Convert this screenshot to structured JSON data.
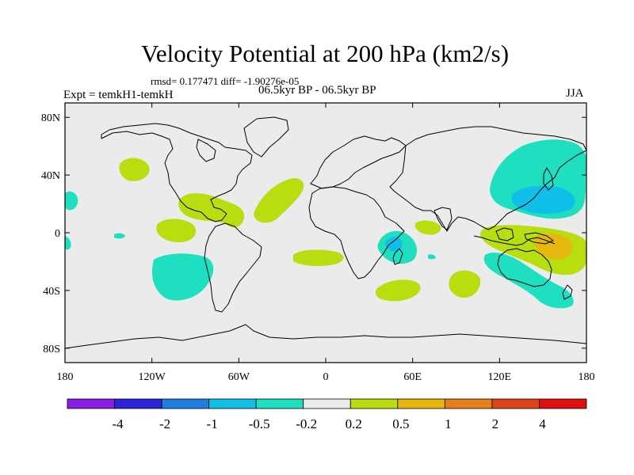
{
  "title": "Velocity Potential at 200 hPa (km2/s)",
  "stats": "rmsd= 0.177471  diff= -1.90276e-05",
  "experiment": "Expt = temkH1-temkH",
  "period": "06.5kyr BP - 06.5kyr BP",
  "season": "JJA",
  "map": {
    "lon_range": [
      -180,
      180
    ],
    "lat_range": [
      -90,
      90
    ],
    "lat_ticks": [
      {
        "value": 80,
        "label": "80N"
      },
      {
        "value": 40,
        "label": "40N"
      },
      {
        "value": 0,
        "label": "0"
      },
      {
        "value": -40,
        "label": "40S"
      },
      {
        "value": -80,
        "label": "80S"
      }
    ],
    "lon_ticks": [
      {
        "value": -180,
        "label": "180"
      },
      {
        "value": -120,
        "label": "120W"
      },
      {
        "value": -60,
        "label": "60W"
      },
      {
        "value": 0,
        "label": "0"
      },
      {
        "value": 60,
        "label": "60E"
      },
      {
        "value": 120,
        "label": "120E"
      },
      {
        "value": 180,
        "label": "180"
      }
    ],
    "background_color": "#ebebeb"
  },
  "colorbar": {
    "labels": [
      "-4",
      "-2",
      "-1",
      "-0.5",
      "-0.2",
      "0.2",
      "0.5",
      "1",
      "2",
      "4"
    ],
    "colors": [
      "#8a1ce6",
      "#2a26d8",
      "#1f7ee0",
      "#10bfe8",
      "#1ee0c0",
      "#ebebeb",
      "#b9de10",
      "#e6b80e",
      "#e67e1a",
      "#e04416",
      "#e01010"
    ]
  }
}
